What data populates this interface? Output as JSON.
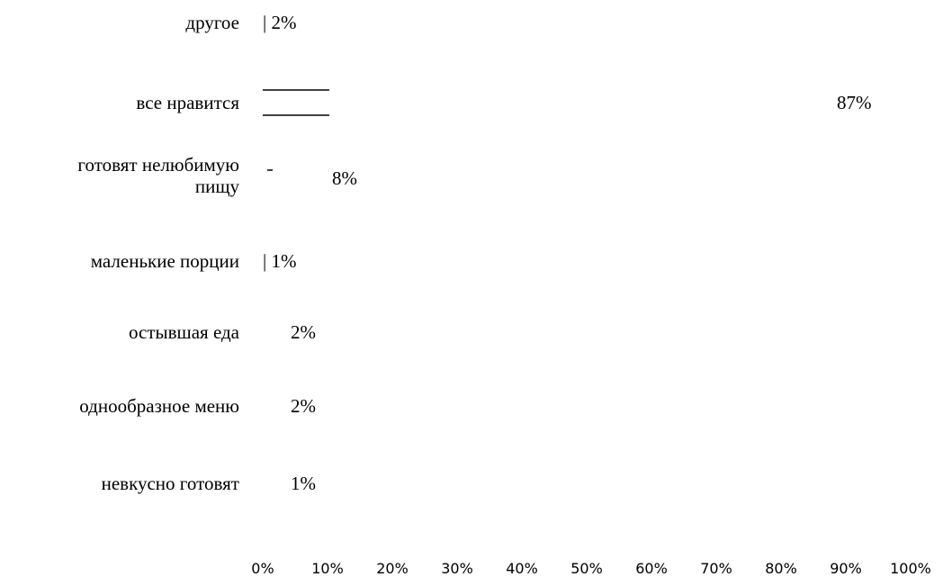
{
  "chart_data": {
    "type": "bar",
    "orientation": "horizontal",
    "categories": [
      "другое",
      "все нравится",
      "готовят нелюбимую пищу",
      "маленькие порции",
      "остывшая еда",
      "однообразное меню",
      "невкусно готовят"
    ],
    "category_label_lines": [
      [
        "другое"
      ],
      [
        "все нравится"
      ],
      [
        "готовят нелюбимую",
        "пищу"
      ],
      [
        "маленькие порции"
      ],
      [
        "остывшая еда"
      ],
      [
        "однообразное меню"
      ],
      [
        "невкусно готовят"
      ]
    ],
    "values": [
      2,
      87,
      8,
      1,
      2,
      2,
      1
    ],
    "data_labels": [
      "| 2%",
      "87%",
      "8%",
      "| 1%",
      "2%",
      "2%",
      "1%"
    ],
    "xlim": [
      0,
      100
    ],
    "x_ticks": [
      "0%",
      "10%",
      "20%",
      "30%",
      "40%",
      "50%",
      "60%",
      "70%",
      "80%",
      "90%",
      "100%"
    ],
    "title": "",
    "xlabel": "",
    "ylabel": "",
    "bar_color": "#000000",
    "grid": false,
    "legend": "none"
  }
}
